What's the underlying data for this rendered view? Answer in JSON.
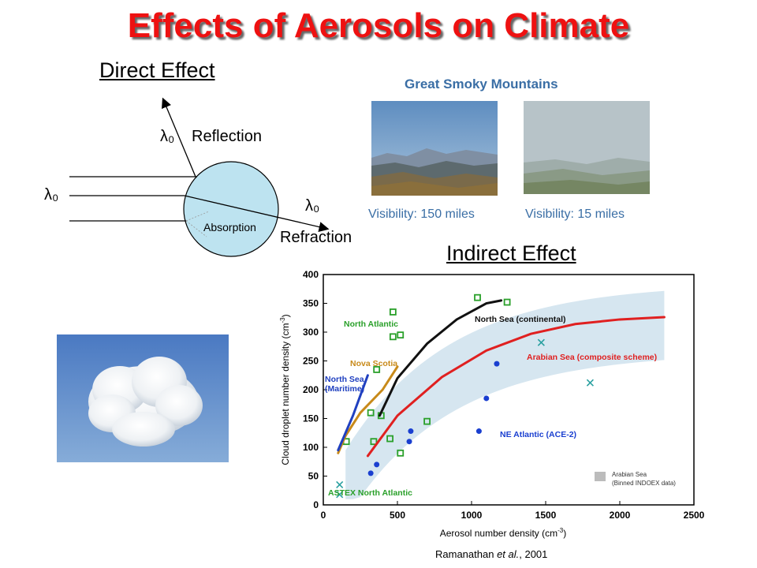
{
  "title": "Effects of Aerosols on Climate",
  "direct": {
    "heading": "Direct Effect",
    "lambda": "λ₀",
    "reflection": "Reflection",
    "refraction": "Refraction",
    "absorption": "Absorption"
  },
  "smoky": {
    "heading": "Great Smoky Mountains",
    "clear_caption": "Visibility: 150 miles",
    "hazy_caption": "Visibility: 15 miles"
  },
  "indirect": {
    "heading": "Indirect Effect"
  },
  "citation": {
    "author": "Ramanathan ",
    "etal": "et al.",
    "year": ", 2001"
  },
  "chart_data": {
    "type": "scatter",
    "xlabel": "Aerosol number density (cm-3)",
    "ylabel": "Cloud droplet number density (cm-3)",
    "xlim": [
      0,
      2500
    ],
    "ylim": [
      0,
      400
    ],
    "xticks": [
      0,
      500,
      1000,
      1500,
      2000,
      2500
    ],
    "yticks": [
      0,
      50,
      100,
      150,
      200,
      250,
      300,
      350,
      400
    ],
    "series": [
      {
        "name": "North Atlantic",
        "marker": "square",
        "color": "#2aa02a",
        "points": [
          [
            155,
            110
          ],
          [
            320,
            160
          ],
          [
            340,
            110
          ],
          [
            390,
            155
          ],
          [
            450,
            115
          ],
          [
            520,
            90
          ],
          [
            700,
            145
          ],
          [
            1040,
            360
          ],
          [
            1240,
            352
          ],
          [
            470,
            335
          ],
          [
            470,
            292
          ],
          [
            520,
            295
          ],
          [
            360,
            235
          ]
        ]
      },
      {
        "name": "NE Atlantic (ACE-2)",
        "marker": "dot",
        "color": "#1a3fd0",
        "points": [
          [
            320,
            55
          ],
          [
            360,
            70
          ],
          [
            580,
            110
          ],
          [
            590,
            128
          ],
          [
            1050,
            128
          ],
          [
            1100,
            185
          ],
          [
            1170,
            245
          ]
        ]
      },
      {
        "name": "ASTEX North Atlantic",
        "marker": "x",
        "color": "#2aa0a0",
        "points": [
          [
            110,
            35
          ],
          [
            110,
            18
          ],
          [
            1470,
            282
          ],
          [
            1800,
            212
          ]
        ]
      },
      {
        "name": "Arabian Sea (composite scheme)",
        "marker": "line",
        "color": "#e02020",
        "points": [
          [
            300,
            85
          ],
          [
            500,
            155
          ],
          [
            800,
            222
          ],
          [
            1100,
            268
          ],
          [
            1400,
            297
          ],
          [
            1700,
            314
          ],
          [
            2000,
            322
          ],
          [
            2300,
            326
          ]
        ]
      },
      {
        "name": "North Sea (continental)",
        "marker": "line",
        "color": "#111111",
        "points": [
          [
            380,
            155
          ],
          [
            500,
            220
          ],
          [
            700,
            280
          ],
          [
            900,
            322
          ],
          [
            1100,
            350
          ],
          [
            1200,
            355
          ]
        ]
      },
      {
        "name": "Nova Scotia",
        "marker": "line",
        "color": "#c88a1a",
        "points": [
          [
            100,
            90
          ],
          [
            150,
            120
          ],
          [
            250,
            160
          ],
          [
            400,
            200
          ],
          [
            500,
            240
          ]
        ]
      },
      {
        "name": "North Sea (Maritime)",
        "marker": "line",
        "color": "#2040c0",
        "points": [
          [
            100,
            95
          ],
          [
            150,
            125
          ],
          [
            200,
            155
          ],
          [
            250,
            190
          ],
          [
            300,
            225
          ]
        ]
      }
    ],
    "legend": {
      "region_label": "Arabian Sea",
      "region_sub": "(Binned INDOEX data)"
    }
  }
}
